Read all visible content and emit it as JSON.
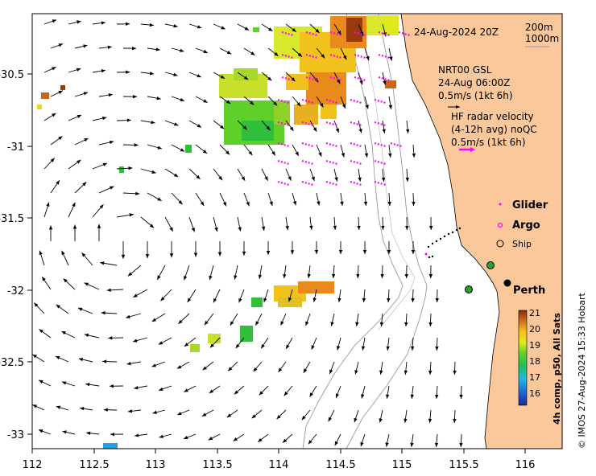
{
  "title_date": "24-Aug-2024 20Z",
  "isobaths": {
    "shallow": "200m",
    "deep": "1000m"
  },
  "gsl": {
    "name": "NRT00 GSL",
    "time": "24-Aug 06:00Z",
    "scale": "0.5m/s (1kt 6h)"
  },
  "hf_radar": {
    "line1": "HF radar velocity",
    "line2": "(4-12h avg) noQC",
    "scale": "0.5m/s (1kt 6h)"
  },
  "legend": {
    "glider": "Glider",
    "argo": "Argo",
    "ship": "Ship"
  },
  "place": "Perth",
  "axes": {
    "x_ticks": [
      "112",
      "112.5",
      "113",
      "113.5",
      "114",
      "114.5",
      "115",
      "115.5",
      "116"
    ],
    "y_ticks": [
      "-30.5",
      "-31",
      "-31.5",
      "-32",
      "-32.5",
      "-33"
    ]
  },
  "colorbar": {
    "ticks": [
      "21",
      "20",
      "19",
      "18",
      "17",
      "16"
    ],
    "label": "4h comp, p50, All Sats"
  },
  "credit": "© IMOS 27-Aug-2024 15:33 Hobart",
  "colors": {
    "land": "#fac89b",
    "arrow": "#000000",
    "radar_arrow": "#ff00ff",
    "marker_green": "#2ca02c"
  }
}
